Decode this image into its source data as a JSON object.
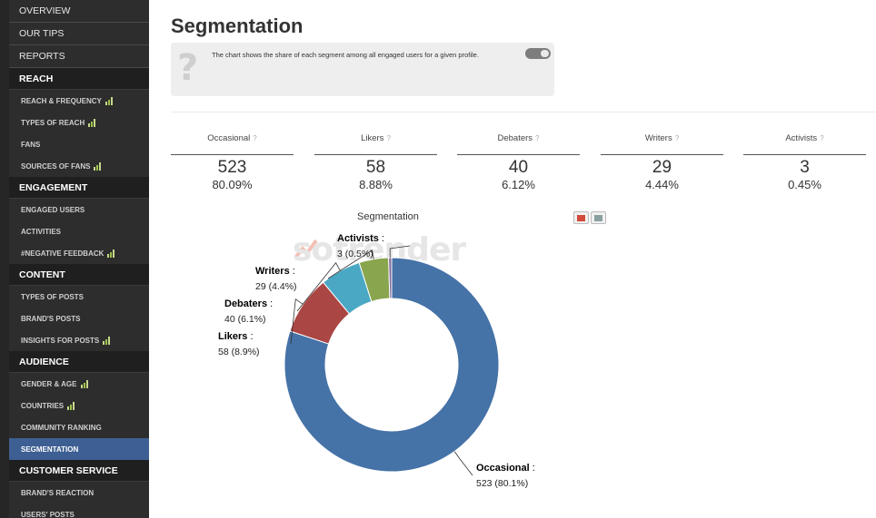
{
  "sidebar": {
    "items": [
      {
        "label": "OVERVIEW",
        "kind": "top"
      },
      {
        "label": "OUR TIPS",
        "kind": "top"
      },
      {
        "label": "REPORTS",
        "kind": "top"
      },
      {
        "label": "REACH",
        "kind": "section"
      },
      {
        "label": "REACH & FREQUENCY",
        "kind": "sub",
        "bars": true
      },
      {
        "label": "TYPES OF REACH",
        "kind": "sub",
        "bars": true
      },
      {
        "label": "FANS",
        "kind": "sub"
      },
      {
        "label": "SOURCES OF FANS",
        "kind": "sub",
        "bars": true
      },
      {
        "label": "ENGAGEMENT",
        "kind": "section"
      },
      {
        "label": "ENGAGED USERS",
        "kind": "sub"
      },
      {
        "label": "ACTIVITIES",
        "kind": "sub"
      },
      {
        "label": "#NEGATIVE FEEDBACK",
        "kind": "sub",
        "bars": true
      },
      {
        "label": "CONTENT",
        "kind": "section"
      },
      {
        "label": "TYPES OF POSTS",
        "kind": "sub"
      },
      {
        "label": "BRAND'S POSTS",
        "kind": "sub"
      },
      {
        "label": "INSIGHTS FOR POSTS",
        "kind": "sub",
        "bars": true
      },
      {
        "label": "AUDIENCE",
        "kind": "section"
      },
      {
        "label": "GENDER & AGE",
        "kind": "sub",
        "bars": true
      },
      {
        "label": "COUNTRIES",
        "kind": "sub",
        "bars": true
      },
      {
        "label": "COMMUNITY RANKING",
        "kind": "sub"
      },
      {
        "label": "SEGMENTATION",
        "kind": "sub",
        "active": true
      },
      {
        "label": "CUSTOMER SERVICE",
        "kind": "section"
      },
      {
        "label": "BRAND'S REACTION",
        "kind": "sub"
      },
      {
        "label": "USERS' POSTS",
        "kind": "sub"
      }
    ]
  },
  "page": {
    "title": "Segmentation",
    "info_text": "The chart shows the share of each segment among all engaged users for a given profile.",
    "info_icon": "?"
  },
  "stats": [
    {
      "label": "Occasional",
      "count": "523",
      "pct": "80.09%"
    },
    {
      "label": "Likers",
      "count": "58",
      "pct": "8.88%"
    },
    {
      "label": "Debaters",
      "count": "40",
      "pct": "6.12%"
    },
    {
      "label": "Writers",
      "count": "29",
      "pct": "4.44%"
    },
    {
      "label": "Activists",
      "count": "3",
      "pct": "0.45%"
    }
  ],
  "stat_help": "?",
  "watermark": "sotrender",
  "chart_data": {
    "type": "pie",
    "title": "Segmentation",
    "donut": true,
    "slices": [
      {
        "name": "Occasional",
        "value": 523,
        "label": "523 (80.1%)",
        "color": "#4572a7"
      },
      {
        "name": "Likers",
        "value": 58,
        "label": "58 (8.9%)",
        "color": "#aa4643"
      },
      {
        "name": "Debaters",
        "value": 40,
        "label": "40 (6.1%)",
        "color": "#4aa8c4"
      },
      {
        "name": "Writers",
        "value": 29,
        "label": "29 (4.4%)",
        "color": "#89a54e"
      },
      {
        "name": "Activists",
        "value": 3,
        "label": "3 (0.5%)",
        "color": "#80699b"
      }
    ]
  }
}
